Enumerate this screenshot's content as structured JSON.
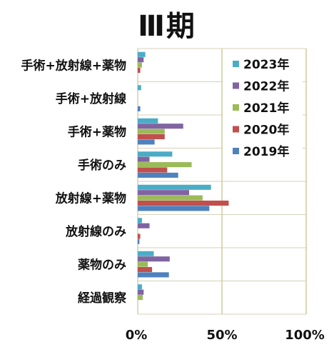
{
  "chart_data": {
    "type": "bar",
    "orientation": "horizontal",
    "title": "Ⅲ期",
    "xlabel": "",
    "ylabel": "",
    "xlim": [
      0,
      100
    ],
    "x_tick_labels": [
      "0%",
      "50%",
      "100%"
    ],
    "x_tick_values": [
      0,
      50,
      100
    ],
    "grid": "vertical at 50% and 100%; horizontal separators between categories",
    "legend_position": "top-right",
    "categories": [
      "手術+放射線+薬物",
      "手術+放射線",
      "手術+薬物",
      "手術のみ",
      "放射線+薬物",
      "放射線のみ",
      "薬物のみ",
      "経過観察"
    ],
    "series": [
      {
        "name": "2023年",
        "color": "#4bacc6",
        "values": [
          4.5,
          2.0,
          12.0,
          20.5,
          43.5,
          2.5,
          9.5,
          2.5
        ]
      },
      {
        "name": "2022年",
        "color": "#8064a2",
        "values": [
          3.5,
          0.0,
          27.0,
          7.0,
          30.5,
          7.0,
          19.0,
          3.5
        ]
      },
      {
        "name": "2021年",
        "color": "#9bbb59",
        "values": [
          2.5,
          0.0,
          16.0,
          32.0,
          38.5,
          0.0,
          6.0,
          3.0
        ]
      },
      {
        "name": "2020年",
        "color": "#c0504d",
        "values": [
          1.5,
          0.0,
          16.0,
          17.5,
          54.0,
          1.5,
          8.5,
          0.0
        ]
      },
      {
        "name": "2019年",
        "color": "#4f81bd",
        "values": [
          0.0,
          1.5,
          10.0,
          24.0,
          42.5,
          1.0,
          18.5,
          0.0
        ]
      }
    ]
  }
}
